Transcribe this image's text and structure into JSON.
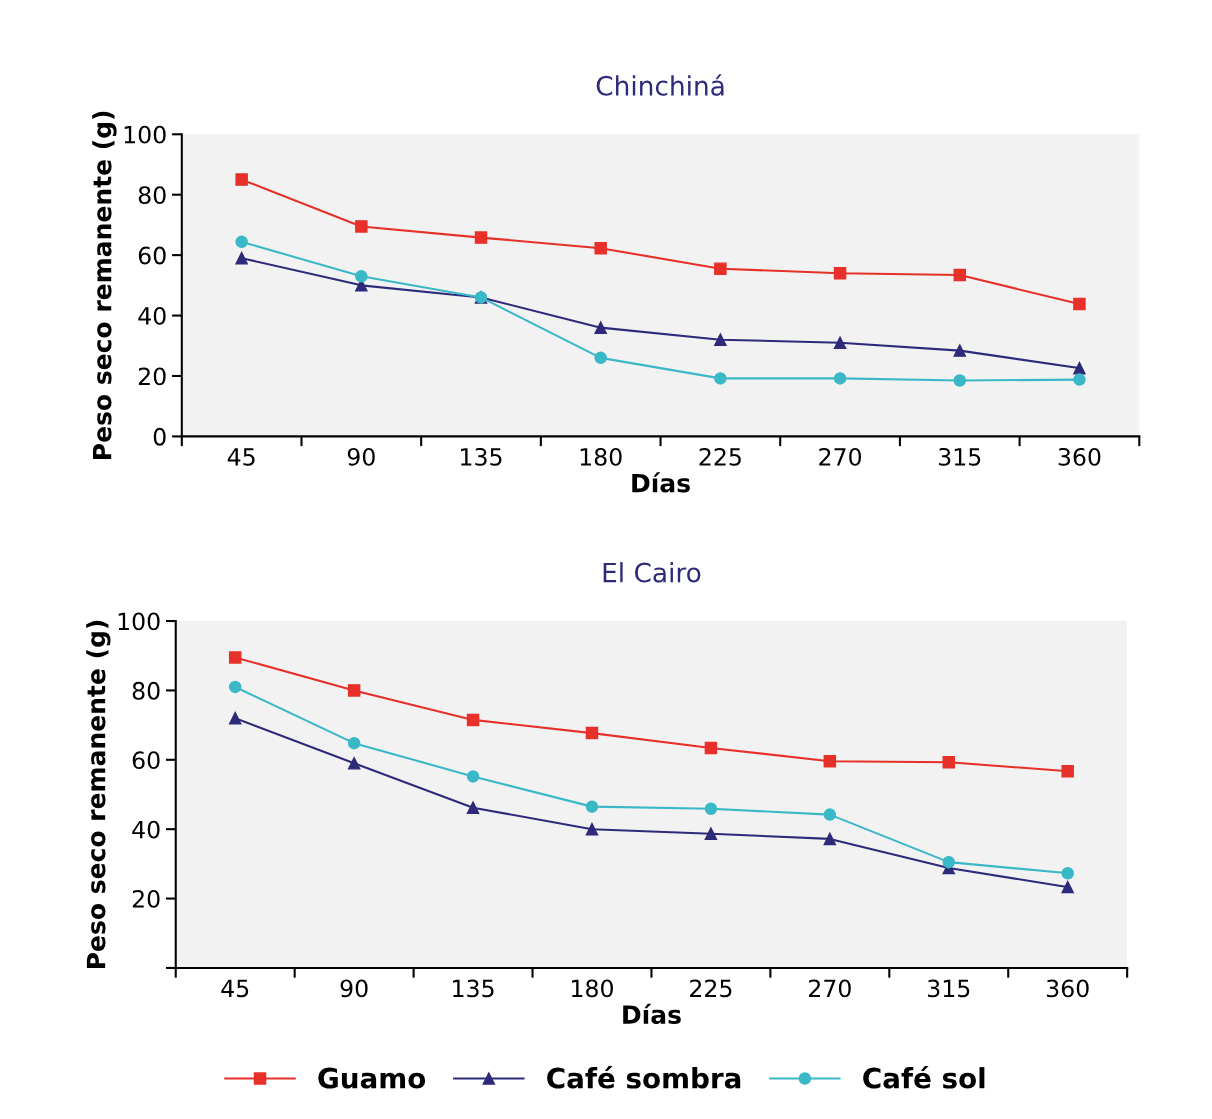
{
  "chart_data": [
    {
      "type": "line",
      "title": "Chinchiná",
      "xlabel": "Días",
      "ylabel": "Peso seco remanente (g)",
      "categories": [
        "45",
        "90",
        "135",
        "180",
        "225",
        "270",
        "315",
        "360"
      ],
      "ylim": [
        0,
        100
      ],
      "yticks": [
        0,
        20,
        40,
        60,
        80,
        100
      ],
      "grid": false,
      "series": [
        {
          "color": "#e8302a",
          "marker": "square",
          "values": [
            85,
            69.5,
            65.8,
            62.3,
            55.5,
            54,
            53.4,
            43.8
          ]
        },
        {
          "color": "#2e2a7a",
          "marker": "triangle",
          "values": [
            59,
            50,
            46,
            36,
            32,
            31,
            28.4,
            22.6
          ]
        },
        {
          "color": "#3bb8c8",
          "marker": "circle",
          "values": [
            64.4,
            53,
            46,
            26,
            19.2,
            19.2,
            18.5,
            18.8
          ]
        }
      ]
    },
    {
      "type": "line",
      "title": "El Cairo",
      "xlabel": "Días",
      "ylabel": "Peso seco remanente (g)",
      "categories": [
        "45",
        "90",
        "135",
        "180",
        "225",
        "270",
        "315",
        "360"
      ],
      "ylim": [
        0,
        100
      ],
      "yticks": [
        {
          "value": 0,
          "label": null
        },
        20,
        40,
        60,
        80,
        100
      ],
      "grid": false,
      "legend": "bottom",
      "series": [
        {
          "name": "Guamo",
          "color": "#e8302a",
          "marker": "square",
          "values": [
            89.5,
            80,
            71.5,
            67.7,
            63.4,
            59.6,
            59.3,
            56.7
          ]
        },
        {
          "name": "Café sombra",
          "color": "#2e2a7a",
          "marker": "triangle",
          "values": [
            72,
            59,
            46.2,
            40,
            38.7,
            37.2,
            28.8,
            23.3
          ]
        },
        {
          "name": "Café sol",
          "color": "#3bb8c8",
          "marker": "circle",
          "values": [
            81,
            64.8,
            55.2,
            46.5,
            45.9,
            44.2,
            30.5,
            27.3
          ]
        }
      ]
    }
  ]
}
